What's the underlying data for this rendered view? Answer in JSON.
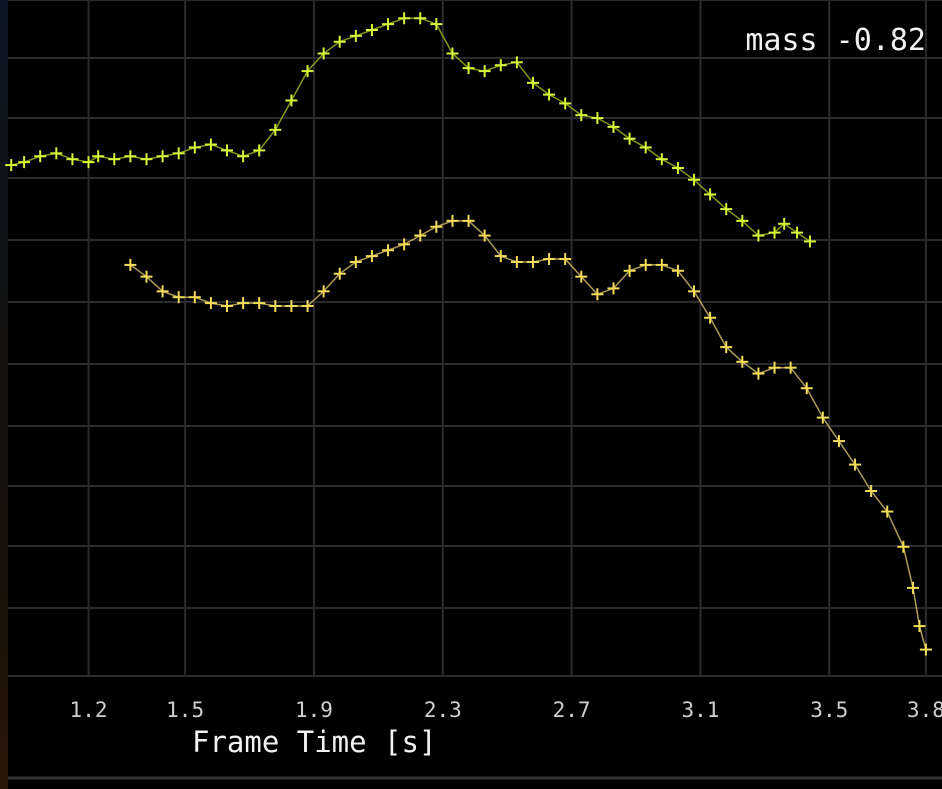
{
  "chart_data": {
    "type": "line",
    "title": "",
    "xlabel": "Frame Time [s]",
    "ylabel": "",
    "annotation": "mass -0.82",
    "xlim": [
      0.95,
      3.85
    ],
    "ylim": [
      0,
      11
    ],
    "xticks": [
      "1.2",
      "1.5",
      "1.9",
      "2.3",
      "2.7",
      "3.1",
      "3.5",
      "3.8"
    ],
    "xtick_values": [
      1.2,
      1.5,
      1.9,
      2.3,
      2.7,
      3.1,
      3.5,
      3.8
    ],
    "grid": true,
    "marker": "+",
    "colors": [
      "#d8f53a",
      "#f2dc5a"
    ],
    "series": [
      {
        "x": [
          0.96,
          1.0,
          1.05,
          1.1,
          1.15,
          1.2,
          1.23,
          1.28,
          1.33,
          1.38,
          1.43,
          1.48,
          1.53,
          1.58,
          1.63,
          1.68,
          1.73,
          1.78,
          1.83,
          1.88,
          1.93,
          1.98,
          2.03,
          2.08,
          2.13,
          2.18,
          2.23,
          2.28,
          2.33,
          2.38,
          2.43,
          2.48,
          2.53,
          2.58,
          2.63,
          2.68,
          2.73,
          2.78,
          2.83,
          2.88,
          2.93,
          2.98,
          3.03,
          3.08,
          3.13,
          3.18,
          3.23,
          3.28,
          3.33,
          3.36,
          3.4,
          3.44
        ],
        "y": [
          8.7,
          8.75,
          8.85,
          8.9,
          8.8,
          8.75,
          8.85,
          8.8,
          8.85,
          8.8,
          8.85,
          8.9,
          9.0,
          9.05,
          8.95,
          8.85,
          8.95,
          9.3,
          9.8,
          10.3,
          10.6,
          10.8,
          10.9,
          11.0,
          11.1,
          11.2,
          11.2,
          11.1,
          10.6,
          10.35,
          10.3,
          10.4,
          10.45,
          10.1,
          9.9,
          9.75,
          9.55,
          9.5,
          9.35,
          9.15,
          9.0,
          8.8,
          8.65,
          8.45,
          8.2,
          7.95,
          7.75,
          7.5,
          7.55,
          7.7,
          7.55,
          7.4
        ]
      },
      {
        "x": [
          1.33,
          1.38,
          1.43,
          1.48,
          1.53,
          1.58,
          1.63,
          1.68,
          1.73,
          1.78,
          1.83,
          1.88,
          1.93,
          1.98,
          2.03,
          2.08,
          2.13,
          2.18,
          2.23,
          2.28,
          2.33,
          2.38,
          2.43,
          2.48,
          2.53,
          2.58,
          2.63,
          2.68,
          2.73,
          2.78,
          2.83,
          2.88,
          2.93,
          2.98,
          3.03,
          3.08,
          3.13,
          3.18,
          3.23,
          3.28,
          3.33,
          3.38,
          3.43,
          3.48,
          3.53,
          3.58,
          3.63,
          3.68,
          3.73,
          3.76,
          3.78,
          3.8
        ],
        "y": [
          7.0,
          6.8,
          6.55,
          6.45,
          6.45,
          6.35,
          6.3,
          6.35,
          6.35,
          6.3,
          6.3,
          6.3,
          6.55,
          6.85,
          7.05,
          7.15,
          7.25,
          7.35,
          7.5,
          7.65,
          7.75,
          7.75,
          7.5,
          7.15,
          7.05,
          7.05,
          7.1,
          7.1,
          6.8,
          6.5,
          6.6,
          6.9,
          7.0,
          7.0,
          6.9,
          6.55,
          6.1,
          5.6,
          5.35,
          5.15,
          5.25,
          5.25,
          4.9,
          4.4,
          4.0,
          3.6,
          3.15,
          2.8,
          2.2,
          1.5,
          0.85,
          0.45
        ]
      }
    ]
  }
}
